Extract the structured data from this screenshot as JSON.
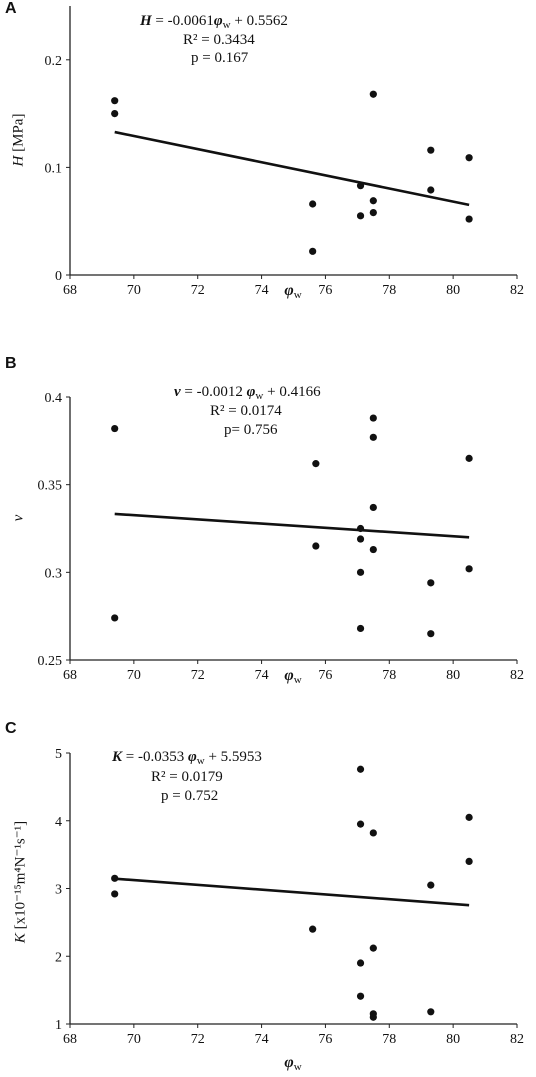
{
  "chart_data": [
    {
      "type": "scatter",
      "panel_label": "A",
      "equation_var": "H",
      "equation_rest": " = -0.0061",
      "equation_x": "φ",
      "equation_x_sub": "w",
      "equation_tail": " + 0.5562",
      "r2_text": "R² = 0.3434",
      "p_text": "p = 0.167",
      "ylabel_var": "H",
      "ylabel_unit": " [MPa]",
      "xlabel": "φ",
      "xlabel_sub": "w",
      "xlim": [
        68,
        82
      ],
      "ylim": [
        0,
        0.25
      ],
      "xticks": [
        "68",
        "70",
        "72",
        "74",
        "76",
        "78",
        "80",
        "82"
      ],
      "yticks": [
        "0",
        "0.1",
        "0.2"
      ],
      "ytick_values": [
        0,
        0.1,
        0.2
      ],
      "trendline": {
        "slope": -0.0061,
        "intercept": 0.5562,
        "x": [
          69.4,
          80.5
        ]
      },
      "x": [
        69.4,
        69.4,
        75.6,
        75.6,
        77.1,
        77.1,
        77.5,
        77.5,
        77.5,
        79.3,
        79.3,
        80.5,
        80.5
      ],
      "y": [
        0.162,
        0.15,
        0.066,
        0.022,
        0.083,
        0.055,
        0.168,
        0.069,
        0.058,
        0.116,
        0.079,
        0.109,
        0.052
      ]
    },
    {
      "type": "scatter",
      "panel_label": "B",
      "equation_var": "ν",
      "equation_rest": " = -0.0012 ",
      "equation_x": "φ",
      "equation_x_sub": "w",
      "equation_tail": " + 0.4166",
      "r2_text": "R² = 0.0174",
      "p_text": "p= 0.756",
      "ylabel_var": "ν",
      "ylabel_unit": "",
      "xlabel": "φ",
      "xlabel_sub": "w",
      "xlim": [
        68,
        82
      ],
      "ylim": [
        0.25,
        0.4
      ],
      "xticks": [
        "68",
        "70",
        "72",
        "74",
        "76",
        "78",
        "80",
        "82"
      ],
      "yticks": [
        "0.25",
        "0.3",
        "0.35",
        "0.4"
      ],
      "ytick_values": [
        0.25,
        0.3,
        0.35,
        0.4
      ],
      "trendline": {
        "slope": -0.0012,
        "intercept": 0.4166,
        "x": [
          69.4,
          80.5
        ]
      },
      "x": [
        69.4,
        69.4,
        75.7,
        75.7,
        77.1,
        77.1,
        77.1,
        77.1,
        77.5,
        77.5,
        77.5,
        77.5,
        79.3,
        79.3,
        80.5,
        80.5
      ],
      "y": [
        0.382,
        0.274,
        0.362,
        0.315,
        0.325,
        0.319,
        0.3,
        0.268,
        0.388,
        0.377,
        0.337,
        0.313,
        0.294,
        0.265,
        0.365,
        0.302
      ]
    },
    {
      "type": "scatter",
      "panel_label": "C",
      "equation_var": "K",
      "equation_rest": " = -0.0353 ",
      "equation_x": "φ",
      "equation_x_sub": "w",
      "equation_tail": " + 5.5953",
      "r2_text": "R² = 0.0179",
      "p_text": "p = 0.752",
      "ylabel_var": "K",
      "ylabel_unit": " [x10⁻¹⁵m⁴N⁻¹s⁻¹]",
      "xlabel": "φ",
      "xlabel_sub": "w",
      "xlim": [
        68,
        82
      ],
      "ylim": [
        1,
        5
      ],
      "xticks": [
        "68",
        "70",
        "72",
        "74",
        "76",
        "78",
        "80",
        "82"
      ],
      "yticks": [
        "1",
        "2",
        "3",
        "4",
        "5"
      ],
      "ytick_values": [
        1,
        2,
        3,
        4,
        5
      ],
      "trendline": {
        "slope": -0.0353,
        "intercept": 5.5953,
        "x": [
          69.4,
          80.5
        ]
      },
      "x": [
        69.4,
        69.4,
        75.6,
        77.1,
        77.1,
        77.1,
        77.1,
        77.5,
        77.5,
        77.5,
        77.5,
        79.3,
        79.3,
        80.5,
        80.5
      ],
      "y": [
        3.15,
        2.92,
        2.4,
        4.76,
        3.95,
        1.9,
        1.41,
        3.82,
        2.12,
        1.15,
        1.1,
        3.05,
        1.18,
        4.05,
        3.4
      ]
    }
  ]
}
